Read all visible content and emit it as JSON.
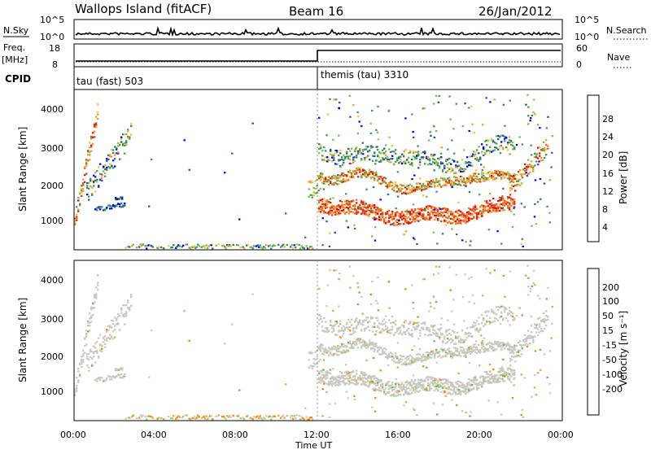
{
  "header": {
    "station": "Wallops Island (fitACF)",
    "beam": "Beam 16",
    "date": "26/Jan/2012"
  },
  "strip": {
    "nsky_label": "N.Sky",
    "nsky_ticks": [
      "10^5",
      "10^0"
    ],
    "nsearch_label": "N.Search",
    "nsearch_ticks": [
      "10^5",
      "10^0"
    ],
    "freq_label_1": "Freq.",
    "freq_label_2": "[MHz]",
    "freq_ticks": [
      "18",
      "8"
    ],
    "nave_label": "Nave",
    "nave_ticks": [
      "60",
      "0"
    ],
    "cpid_label": "CPID",
    "cpid_segments": [
      {
        "label": "tau (fast) 503",
        "start": 0
      },
      {
        "label": "themis (tau) 3310",
        "start": 12
      }
    ]
  },
  "colors": {
    "power": [
      "#0000ff",
      "#1f4fa8",
      "#2e7d5a",
      "#3a9a5c",
      "#6cc04a",
      "#f2c43a",
      "#f29a2e",
      "#f06a1e",
      "#e83a12",
      "#e0100a"
    ],
    "velocity": [
      "#ff0000",
      "#ff4a00",
      "#ff8000",
      "#f0a030",
      "#c8c8c0",
      "#9ad060",
      "#5cc040",
      "#2e7d5a",
      "#1e4fa0",
      "#1010c0"
    ],
    "grey": "#c8c8c0"
  },
  "chart_data": [
    {
      "type": "heatmap",
      "name": "power",
      "ylabel": "Slant Range [km]",
      "yticks": [
        "4000",
        "3000",
        "2000",
        "1000"
      ],
      "ylim": [
        200,
        4500
      ],
      "xlim": [
        0,
        24
      ],
      "colorbar_label": "Power [dB]",
      "colorbar_ticks": [
        "28",
        "24",
        "20",
        "16",
        "12",
        "8",
        "4"
      ],
      "colorbar_range": [
        0,
        32
      ]
    },
    {
      "type": "heatmap",
      "name": "velocity",
      "ylabel": "Slant Range [km]",
      "yticks": [
        "4000",
        "3000",
        "2000",
        "1000"
      ],
      "ylim": [
        200,
        4500
      ],
      "xlim": [
        0,
        24
      ],
      "colorbar_label": "Velocity [m s⁻¹]",
      "colorbar_ticks": [
        "200",
        "100",
        "50",
        "15",
        "-15",
        "-50",
        "-100",
        "-200"
      ]
    }
  ],
  "xaxis": {
    "ticks": [
      "00:00",
      "04:00",
      "08:00",
      "12:00",
      "16:00",
      "20:00",
      "00:00"
    ],
    "label": "Time UT"
  }
}
